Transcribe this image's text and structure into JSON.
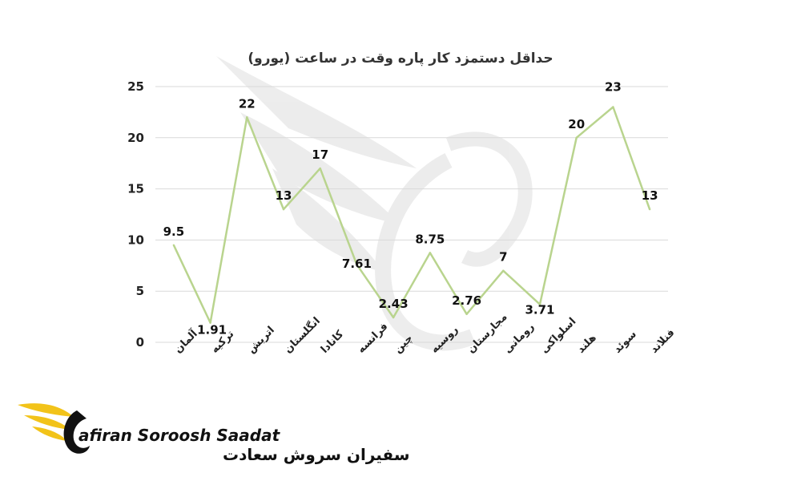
{
  "chart_data": {
    "type": "line",
    "title": "حداقل دستمزد کار پاره وقت در ساعت (یورو)",
    "categories": [
      "آلمان",
      "ترکیه",
      "اتریش",
      "انگلستان",
      "کانادا",
      "فرانسه",
      "چین",
      "روسیه",
      "مجارستان",
      "رومانی",
      "اسلواکی",
      "هلند",
      "سوئد",
      "فنلاند"
    ],
    "values": [
      9.5,
      1.91,
      22,
      13,
      17,
      7.61,
      2.43,
      8.75,
      2.76,
      7,
      3.71,
      20,
      23,
      13
    ],
    "labels": [
      "9.5",
      "1.91",
      "22",
      "13",
      "17",
      "7.61",
      "2.43",
      "8.75",
      "2.76",
      "7",
      "3.71",
      "20",
      "23",
      "13"
    ],
    "ylim": [
      0,
      25
    ],
    "yticks": [
      0,
      5,
      10,
      15,
      20,
      25
    ],
    "grid": true,
    "line_color": "#b9d48e",
    "xlabel": "",
    "ylabel": ""
  },
  "logo": {
    "name_en": "afiran Soroosh Saadat",
    "name_fa": "سفیران سروش سعادت",
    "accent_color": "#f2c319"
  }
}
